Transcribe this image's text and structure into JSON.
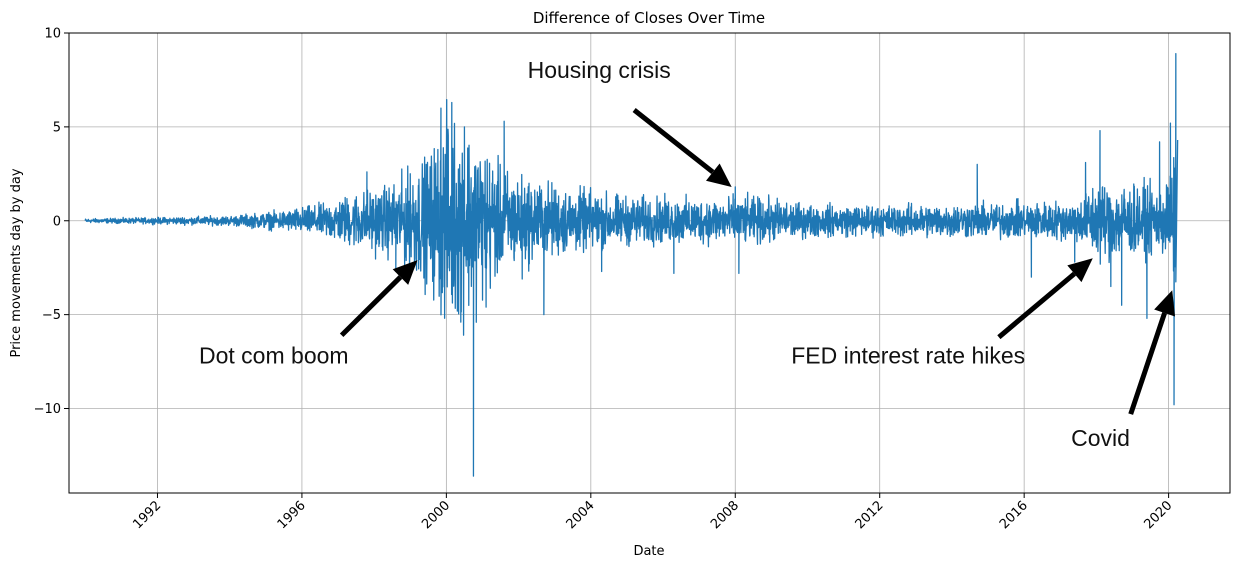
{
  "chart_data": {
    "type": "line",
    "title": "Difference of Closes Over Time",
    "xlabel": "Date",
    "ylabel": "Price movements day by day",
    "xlim": [
      1989.55,
      2021.7
    ],
    "ylim": [
      -14.5,
      10
    ],
    "grid": true,
    "x_ticks": [
      {
        "value": 1992,
        "label": "1992"
      },
      {
        "value": 1996,
        "label": "1996"
      },
      {
        "value": 2000,
        "label": "2000"
      },
      {
        "value": 2004,
        "label": "2004"
      },
      {
        "value": 2008,
        "label": "2008"
      },
      {
        "value": 2012,
        "label": "2012"
      },
      {
        "value": 2016,
        "label": "2016"
      },
      {
        "value": 2020,
        "label": "2020"
      }
    ],
    "y_ticks": [
      {
        "value": -10,
        "label": "−10"
      },
      {
        "value": -5,
        "label": "−5"
      },
      {
        "value": 0,
        "label": "0"
      },
      {
        "value": 5,
        "label": "5"
      },
      {
        "value": 10,
        "label": "10"
      }
    ],
    "series": [
      {
        "name": "Difference of Closes",
        "color": "#1f77b4",
        "envelope": {
          "x": [
            1990.0,
            1992.0,
            1994.0,
            1995.5,
            1996.5,
            1997.5,
            1998.5,
            1999.5,
            2000.0,
            2000.5,
            2001.0,
            2001.5,
            2002.5,
            2003.5,
            2005.0,
            2007.0,
            2008.0,
            2009.0,
            2010.0,
            2012.0,
            2014.0,
            2016.0,
            2017.5,
            2018.0,
            2019.0,
            2019.8,
            2020.2
          ],
          "amplitude": [
            0.05,
            0.08,
            0.12,
            0.25,
            0.4,
            0.7,
            0.9,
            1.6,
            2.6,
            2.4,
            2.0,
            1.3,
            1.0,
            0.8,
            0.6,
            0.55,
            0.6,
            0.55,
            0.4,
            0.38,
            0.42,
            0.45,
            0.5,
            1.0,
            0.9,
            0.8,
            1.6
          ]
        },
        "spikes": [
          {
            "x": 1997.8,
            "y": 2.6
          },
          {
            "x": 1998.6,
            "y": -2.7
          },
          {
            "x": 1999.0,
            "y": 2.5
          },
          {
            "x": 1999.85,
            "y": 6.0
          },
          {
            "x": 2000.15,
            "y": 6.3
          },
          {
            "x": 2000.4,
            "y": -5.4
          },
          {
            "x": 2000.5,
            "y": 5.0
          },
          {
            "x": 2000.75,
            "y": -13.6
          },
          {
            "x": 2001.1,
            "y": -4.6
          },
          {
            "x": 2001.6,
            "y": 5.3
          },
          {
            "x": 2002.1,
            "y": -3.1
          },
          {
            "x": 2002.7,
            "y": -5.0
          },
          {
            "x": 2004.3,
            "y": -2.7
          },
          {
            "x": 2006.3,
            "y": -2.8
          },
          {
            "x": 2008.0,
            "y": 1.8
          },
          {
            "x": 2008.1,
            "y": -2.8
          },
          {
            "x": 2014.7,
            "y": 3.0
          },
          {
            "x": 2016.2,
            "y": -3.0
          },
          {
            "x": 2017.4,
            "y": -2.2
          },
          {
            "x": 2017.7,
            "y": 3.1
          },
          {
            "x": 2018.1,
            "y": 4.8
          },
          {
            "x": 2018.4,
            "y": -3.5
          },
          {
            "x": 2018.7,
            "y": -4.5
          },
          {
            "x": 2019.4,
            "y": -5.2
          },
          {
            "x": 2019.75,
            "y": 4.2
          },
          {
            "x": 2020.05,
            "y": 5.2
          },
          {
            "x": 2020.15,
            "y": -9.8
          },
          {
            "x": 2020.2,
            "y": 8.9
          },
          {
            "x": 2020.25,
            "y": 4.3
          }
        ]
      }
    ],
    "annotations": [
      {
        "text": "Dot com boom",
        "text_x": 1993.15,
        "text_y": -7.6,
        "arrow_from": [
          1997.1,
          -6.1
        ],
        "arrow_to": [
          1999.2,
          -2.1
        ]
      },
      {
        "text": "Housing crisis",
        "text_x": 2002.25,
        "text_y": 7.6,
        "arrow_from": [
          2005.2,
          5.9
        ],
        "arrow_to": [
          2007.9,
          1.8
        ]
      },
      {
        "text": "FED interest rate hikes",
        "text_x": 2009.55,
        "text_y": -7.6,
        "arrow_from": [
          2015.3,
          -6.2
        ],
        "arrow_to": [
          2017.9,
          -2.0
        ]
      },
      {
        "text": "Covid",
        "text_x": 2017.3,
        "text_y": -12.0,
        "arrow_from": [
          2018.95,
          -10.3
        ],
        "arrow_to": [
          2020.1,
          -3.7
        ]
      }
    ]
  }
}
